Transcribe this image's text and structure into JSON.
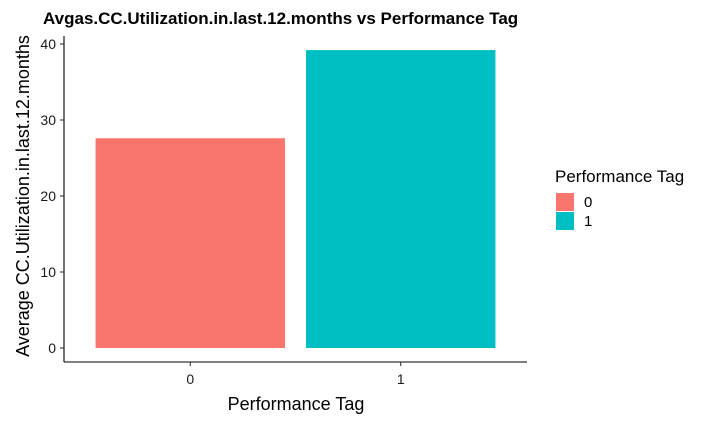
{
  "chart_data": {
    "type": "bar",
    "title": "Avgas.CC.Utilization.in.last.12.months vs Performance Tag",
    "xlabel": "Performance Tag",
    "ylabel": "Average CC.Utilization.in.last.12.months",
    "categories": [
      "0",
      "1"
    ],
    "values": [
      27.6,
      39.2
    ],
    "colors": [
      "#F8766D",
      "#00BFC4"
    ],
    "ylim": [
      0,
      42
    ],
    "yticks": [
      0,
      10,
      20,
      30,
      40
    ],
    "grid": false,
    "legend": {
      "title": "Performance Tag",
      "position": "right",
      "entries": [
        {
          "label": "0",
          "color": "#F8766D"
        },
        {
          "label": "1",
          "color": "#00BFC4"
        }
      ]
    }
  }
}
